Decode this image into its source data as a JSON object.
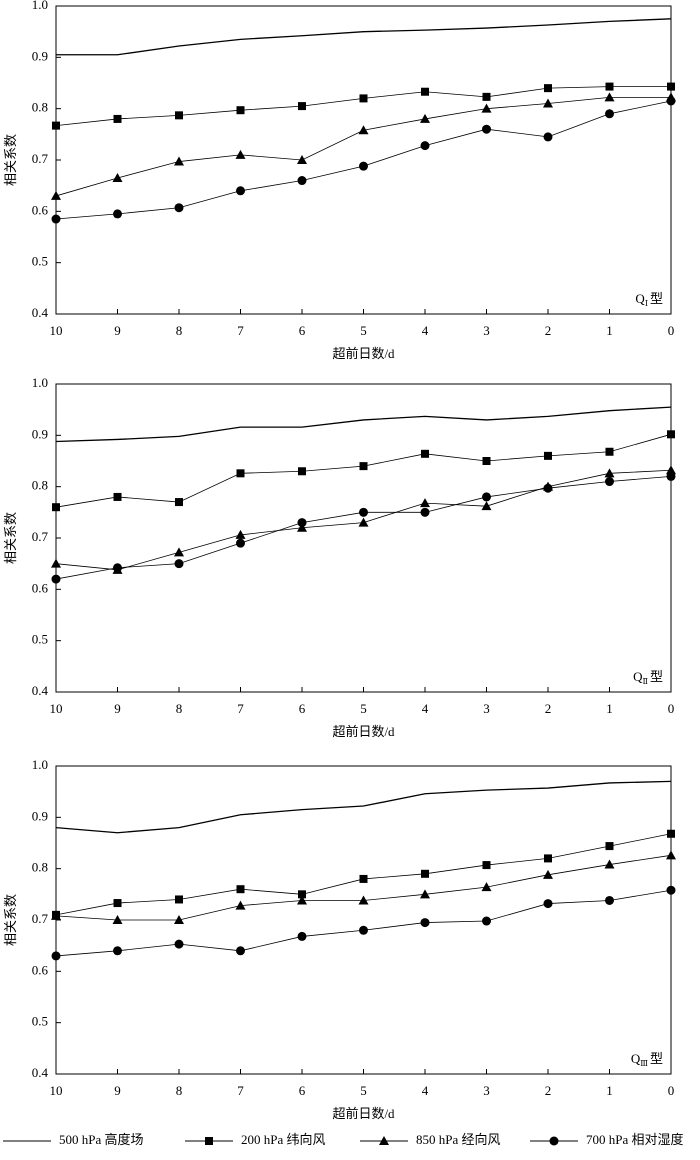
{
  "chart_data": [
    {
      "type": "line",
      "xlabel": "超前日数/d",
      "ylabel": "相关系数",
      "annotation": {
        "text": "Q",
        "subscript": "Ⅰ",
        "suffix": "型"
      },
      "x": [
        10,
        9,
        8,
        7,
        6,
        5,
        4,
        3,
        2,
        1,
        0
      ],
      "xlim": [
        10,
        0
      ],
      "xticks": [
        10,
        9,
        8,
        7,
        6,
        5,
        4,
        3,
        2,
        1,
        0
      ],
      "ylim": [
        0.4,
        1
      ],
      "yticks": [
        0.4,
        0.5,
        0.6,
        0.7,
        0.8,
        0.9,
        {
          "value": 1,
          "label": "1.0"
        }
      ],
      "series": [
        {
          "marker": "none",
          "color": "#000000",
          "values": [
            0.905,
            0.905,
            0.922,
            0.935,
            0.942,
            0.95,
            0.953,
            0.957,
            0.963,
            0.97,
            0.975
          ]
        },
        {
          "marker": "square",
          "color": "#000000",
          "values": [
            0.767,
            0.78,
            0.787,
            0.797,
            0.805,
            0.82,
            0.833,
            0.823,
            0.84,
            0.843,
            0.843
          ]
        },
        {
          "marker": "triangle",
          "color": "#000000",
          "values": [
            0.63,
            0.665,
            0.697,
            0.71,
            0.7,
            0.758,
            0.78,
            0.8,
            0.81,
            0.822,
            0.822
          ]
        },
        {
          "marker": "circle",
          "color": "#000000",
          "values": [
            0.585,
            0.595,
            0.607,
            0.64,
            0.66,
            0.688,
            0.728,
            0.76,
            0.745,
            0.79,
            0.815
          ]
        }
      ]
    },
    {
      "type": "line",
      "xlabel": "超前日数/d",
      "ylabel": "相关系数",
      "annotation": {
        "text": "Q",
        "subscript": "Ⅱ",
        "suffix": "型"
      },
      "x": [
        10,
        9,
        8,
        7,
        6,
        5,
        4,
        3,
        2,
        1,
        0
      ],
      "xlim": [
        10,
        0
      ],
      "xticks": [
        10,
        9,
        8,
        7,
        6,
        5,
        4,
        3,
        2,
        1,
        0
      ],
      "ylim": [
        0.4,
        1
      ],
      "yticks": [
        0.4,
        0.5,
        0.6,
        0.7,
        0.8,
        0.9,
        {
          "value": 1,
          "label": "1.0"
        }
      ],
      "series": [
        {
          "marker": "none",
          "color": "#000000",
          "values": [
            0.888,
            0.892,
            0.898,
            0.916,
            0.916,
            0.93,
            0.937,
            0.93,
            0.937,
            0.948,
            0.955
          ]
        },
        {
          "marker": "square",
          "color": "#000000",
          "values": [
            0.76,
            0.78,
            0.77,
            0.826,
            0.83,
            0.84,
            0.864,
            0.85,
            0.86,
            0.868,
            0.902
          ]
        },
        {
          "marker": "triangle",
          "color": "#000000",
          "values": [
            0.65,
            0.638,
            0.672,
            0.706,
            0.72,
            0.73,
            0.768,
            0.762,
            0.8,
            0.826,
            0.832
          ]
        },
        {
          "marker": "circle",
          "color": "#000000",
          "values": [
            0.62,
            0.642,
            0.65,
            0.69,
            0.73,
            0.75,
            0.75,
            0.78,
            0.797,
            0.81,
            0.82
          ]
        }
      ]
    },
    {
      "type": "line",
      "xlabel": "超前日数/d",
      "ylabel": "相关系数",
      "annotation": {
        "text": "Q",
        "subscript": "Ⅲ",
        "suffix": "型"
      },
      "x": [
        10,
        9,
        8,
        7,
        6,
        5,
        4,
        3,
        2,
        1,
        0
      ],
      "xlim": [
        10,
        0
      ],
      "xticks": [
        10,
        9,
        8,
        7,
        6,
        5,
        4,
        3,
        2,
        1,
        0
      ],
      "ylim": [
        0.4,
        1
      ],
      "yticks": [
        0.4,
        0.5,
        0.6,
        0.7,
        0.8,
        0.9,
        {
          "value": 1,
          "label": "1.0"
        }
      ],
      "series": [
        {
          "marker": "none",
          "color": "#000000",
          "values": [
            0.88,
            0.87,
            0.88,
            0.905,
            0.915,
            0.922,
            0.946,
            0.953,
            0.957,
            0.967,
            0.97
          ]
        },
        {
          "marker": "square",
          "color": "#000000",
          "values": [
            0.71,
            0.733,
            0.74,
            0.76,
            0.75,
            0.78,
            0.79,
            0.807,
            0.82,
            0.844,
            0.868
          ]
        },
        {
          "marker": "triangle",
          "color": "#000000",
          "values": [
            0.708,
            0.7,
            0.7,
            0.728,
            0.738,
            0.738,
            0.75,
            0.764,
            0.788,
            0.808,
            0.826
          ]
        },
        {
          "marker": "circle",
          "color": "#000000",
          "values": [
            0.63,
            0.64,
            0.653,
            0.64,
            0.668,
            0.68,
            0.695,
            0.698,
            0.732,
            0.738,
            0.758
          ]
        }
      ]
    }
  ],
  "legend": [
    {
      "name": "500 hPa 高度场",
      "marker": "none"
    },
    {
      "name": "200 hPa 纬向风",
      "marker": "square"
    },
    {
      "name": "850 hPa 经向风",
      "marker": "triangle"
    },
    {
      "name": "700 hPa 相对湿度",
      "marker": "circle"
    }
  ]
}
